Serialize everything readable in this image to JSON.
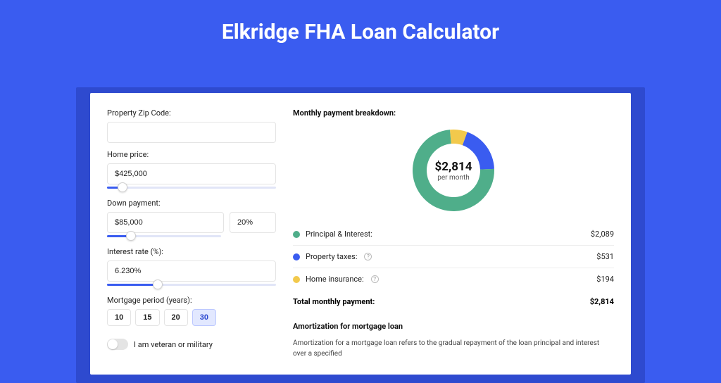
{
  "colors": {
    "page_bg": "#3a5cf0",
    "shadow_bg": "#2e4acf",
    "panel_bg": "#ffffff",
    "slider_fill": "#3a5cf0",
    "slider_track": "#e1e5f7",
    "period_active_bg": "#e2e8ff",
    "period_active_border": "#bcc8ff",
    "period_active_text": "#2b47cf"
  },
  "title": "Elkridge FHA Loan Calculator",
  "form": {
    "zip": {
      "label": "Property Zip Code:",
      "value": ""
    },
    "home_price": {
      "label": "Home price:",
      "value": "$425,000",
      "slider_pct": 9
    },
    "down_payment": {
      "label": "Down payment:",
      "value": "$85,000",
      "pct_value": "20%",
      "slider_pct": 21
    },
    "interest_rate": {
      "label": "Interest rate (%):",
      "value": "6.230%",
      "slider_pct": 30
    },
    "mortgage_period": {
      "label": "Mortgage period (years):",
      "options": [
        "10",
        "15",
        "20",
        "30"
      ],
      "active_index": 3
    },
    "veteran": {
      "label": "I am veteran or military",
      "checked": false
    }
  },
  "breakdown": {
    "title": "Monthly payment breakdown:",
    "donut": {
      "amount": "$2,814",
      "sub": "per month",
      "slices": [
        {
          "label": "Principal & Interest:",
          "value": "$2,089",
          "color": "#4fae8a",
          "pct": 74.2
        },
        {
          "label": "Property taxes:",
          "value": "$531",
          "color": "#3a5cf0",
          "pct": 18.9,
          "info": true
        },
        {
          "label": "Home insurance:",
          "value": "$194",
          "color": "#f2c94c",
          "pct": 6.9,
          "info": true
        }
      ]
    },
    "total": {
      "label": "Total monthly payment:",
      "value": "$2,814"
    }
  },
  "amortization": {
    "title": "Amortization for mortgage loan",
    "text": "Amortization for a mortgage loan refers to the gradual repayment of the loan principal and interest over a specified"
  }
}
